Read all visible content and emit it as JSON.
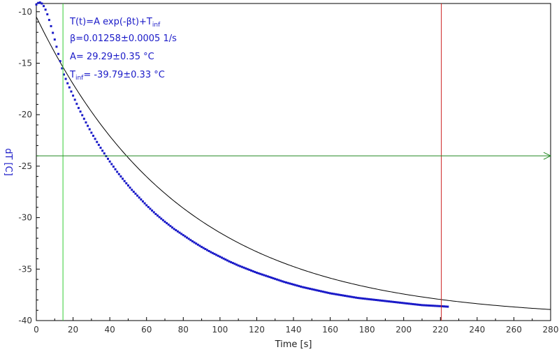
{
  "chart_data": {
    "type": "scatter",
    "xlabel": "Time [s]",
    "ylabel": "dT [C]",
    "xlim": [
      0,
      280
    ],
    "ylim": [
      -40,
      -9.2
    ],
    "x_ticks": [
      0,
      20,
      40,
      60,
      80,
      100,
      120,
      140,
      160,
      180,
      200,
      220,
      240,
      260,
      280
    ],
    "y_ticks": [
      -10,
      -15,
      -20,
      -25,
      -30,
      -35,
      -40
    ],
    "grid": false,
    "colors": {
      "data_points": "#1a1ac8",
      "fit_curve": "#000000",
      "left_cursor": "#33cc33",
      "right_cursor": "#cc2222",
      "horizontal_line": "#228822",
      "annotation_text": "#1a1ac8"
    },
    "fit": {
      "name": "T(t)=A exp(-βt)+T_inf",
      "A": 29.29,
      "beta": 0.01258,
      "T_inf": -39.79,
      "x_range": [
        0,
        280
      ]
    },
    "cursors": {
      "left_x": 14.5,
      "right_x": 220.5,
      "horizontal_y": -24
    },
    "measured_series": {
      "x": [
        0,
        1,
        2,
        3,
        4,
        5,
        6,
        7,
        8,
        9,
        10,
        11,
        12,
        13,
        14,
        15,
        17,
        19,
        21,
        23,
        25,
        27,
        30,
        33,
        36,
        40,
        44,
        48,
        52,
        56,
        60,
        65,
        70,
        75,
        80,
        85,
        90,
        95,
        100,
        105,
        110,
        115,
        120,
        125,
        130,
        135,
        140,
        145,
        150,
        155,
        160,
        165,
        170,
        175,
        180,
        185,
        190,
        195,
        200,
        205,
        210,
        215,
        220,
        224
      ],
      "y": [
        -9.3,
        -9.15,
        -9.1,
        -9.2,
        -9.45,
        -9.8,
        -10.25,
        -10.8,
        -11.4,
        -12.05,
        -12.7,
        -13.4,
        -14.1,
        -14.8,
        -15.5,
        -16.1,
        -16.95,
        -17.75,
        -18.55,
        -19.35,
        -20.05,
        -20.75,
        -21.75,
        -22.65,
        -23.5,
        -24.55,
        -25.55,
        -26.45,
        -27.3,
        -28.05,
        -28.8,
        -29.65,
        -30.4,
        -31.1,
        -31.7,
        -32.3,
        -32.85,
        -33.35,
        -33.8,
        -34.25,
        -34.65,
        -35.0,
        -35.35,
        -35.65,
        -35.95,
        -36.25,
        -36.5,
        -36.75,
        -36.95,
        -37.15,
        -37.35,
        -37.5,
        -37.65,
        -37.8,
        -37.9,
        -38.0,
        -38.1,
        -38.2,
        -38.3,
        -38.4,
        -38.5,
        -38.55,
        -38.6,
        -38.65
      ]
    },
    "annotations": {
      "formula_main": "T(t)=A exp(-βt)+T",
      "formula_sub": "inf",
      "beta_line": "β=0.01258±0.0005 1/s",
      "a_line": "A= 29.29±0.35 °C",
      "tinf_main": "T",
      "tinf_sub": "inf",
      "tinf_rest": "= -39.79±0.33 °C"
    }
  }
}
